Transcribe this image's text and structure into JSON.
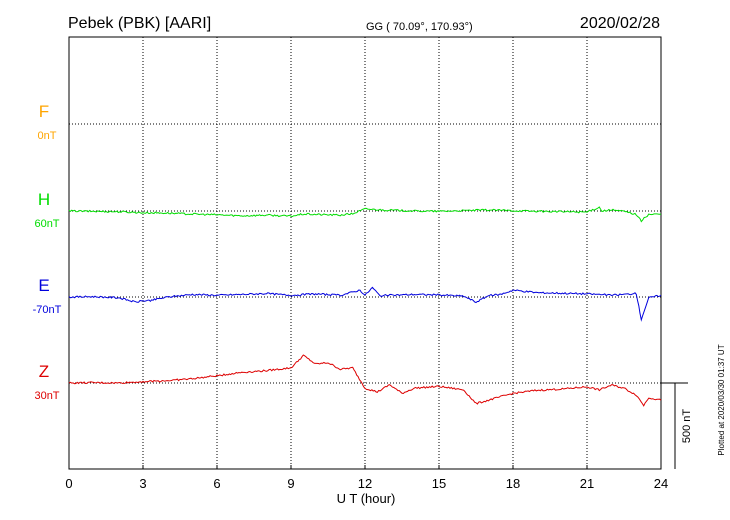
{
  "header": {
    "station": "Pebek (PBK)  [AARI]",
    "coords": "GG ( 70.09°, 170.93°)",
    "date": "2020/02/28"
  },
  "side_note": "Plotted at 2020/03/30 01:37 UT",
  "scale_label": "500 nT",
  "chart_data": {
    "type": "line",
    "title": "Pebek (PBK)  [AARI]",
    "xlabel": "U T (hour)",
    "xlim": [
      0,
      24
    ],
    "xticks": [
      "0",
      "3",
      "6",
      "9",
      "12",
      "15",
      "18",
      "21",
      "24"
    ],
    "grid": true,
    "scale_bar_nT": 500,
    "series": [
      {
        "name": "F",
        "offset_label": "0nT",
        "color": "#ffa500",
        "baseline_nT": 0,
        "x": [],
        "values": []
      },
      {
        "name": "H",
        "offset_label": "60nT",
        "color": "#00dd00",
        "baseline_nT": 60,
        "x": [
          0,
          1,
          2,
          3,
          4,
          5,
          6,
          7,
          8,
          9,
          9.5,
          10,
          11,
          11.5,
          12,
          12.5,
          13,
          14,
          15,
          16,
          17,
          18,
          19,
          20,
          21,
          21.5,
          21.6,
          22,
          22.5,
          23,
          23.2,
          23.5,
          24
        ],
        "values": [
          60,
          58,
          56,
          50,
          48,
          42,
          38,
          32,
          36,
          30,
          42,
          40,
          36,
          44,
          72,
          68,
          65,
          60,
          58,
          62,
          66,
          62,
          58,
          56,
          54,
          82,
          60,
          66,
          58,
          40,
          2,
          40,
          42
        ]
      },
      {
        "name": "E",
        "offset_label": "-70nT",
        "color": "#0000dd",
        "baseline_nT": -70,
        "x": [
          0,
          1,
          2,
          2.7,
          3,
          3.3,
          4,
          5,
          6,
          7,
          8,
          9,
          10,
          11,
          11.8,
          12,
          12.3,
          12.6,
          13,
          14,
          15,
          16,
          16.5,
          17,
          17.5,
          18,
          19,
          20,
          21,
          21.5,
          22,
          22.5,
          23,
          23.2,
          23.5,
          24
        ],
        "values": [
          -70,
          -68,
          -74,
          -100,
          -92,
          -90,
          -70,
          -55,
          -60,
          -55,
          -50,
          -60,
          -52,
          -60,
          -30,
          -60,
          -15,
          -62,
          -60,
          -55,
          -58,
          -65,
          -100,
          -62,
          -55,
          -30,
          -45,
          -48,
          -52,
          -55,
          -60,
          -55,
          -50,
          -200,
          -75,
          -60
        ]
      },
      {
        "name": "Z",
        "offset_label": "30nT",
        "color": "#dd0000",
        "baseline_nT": 30,
        "x": [
          0,
          1,
          2,
          3,
          4,
          5,
          6,
          7,
          8,
          9,
          9.5,
          10,
          10.5,
          11,
          11.5,
          12,
          12.5,
          13,
          13.5,
          14,
          15,
          16,
          16.5,
          17,
          18,
          19,
          20,
          21,
          21.5,
          22,
          22.5,
          23,
          23.3,
          23.5,
          24
        ],
        "values": [
          30,
          32,
          30,
          38,
          44,
          55,
          72,
          92,
          102,
          118,
          190,
          140,
          148,
          110,
          118,
          0,
          -22,
          20,
          -30,
          0,
          10,
          -10,
          -90,
          -70,
          -30,
          -12,
          -5,
          8,
          -10,
          18,
          0,
          -40,
          -100,
          -55,
          -70
        ]
      }
    ]
  }
}
